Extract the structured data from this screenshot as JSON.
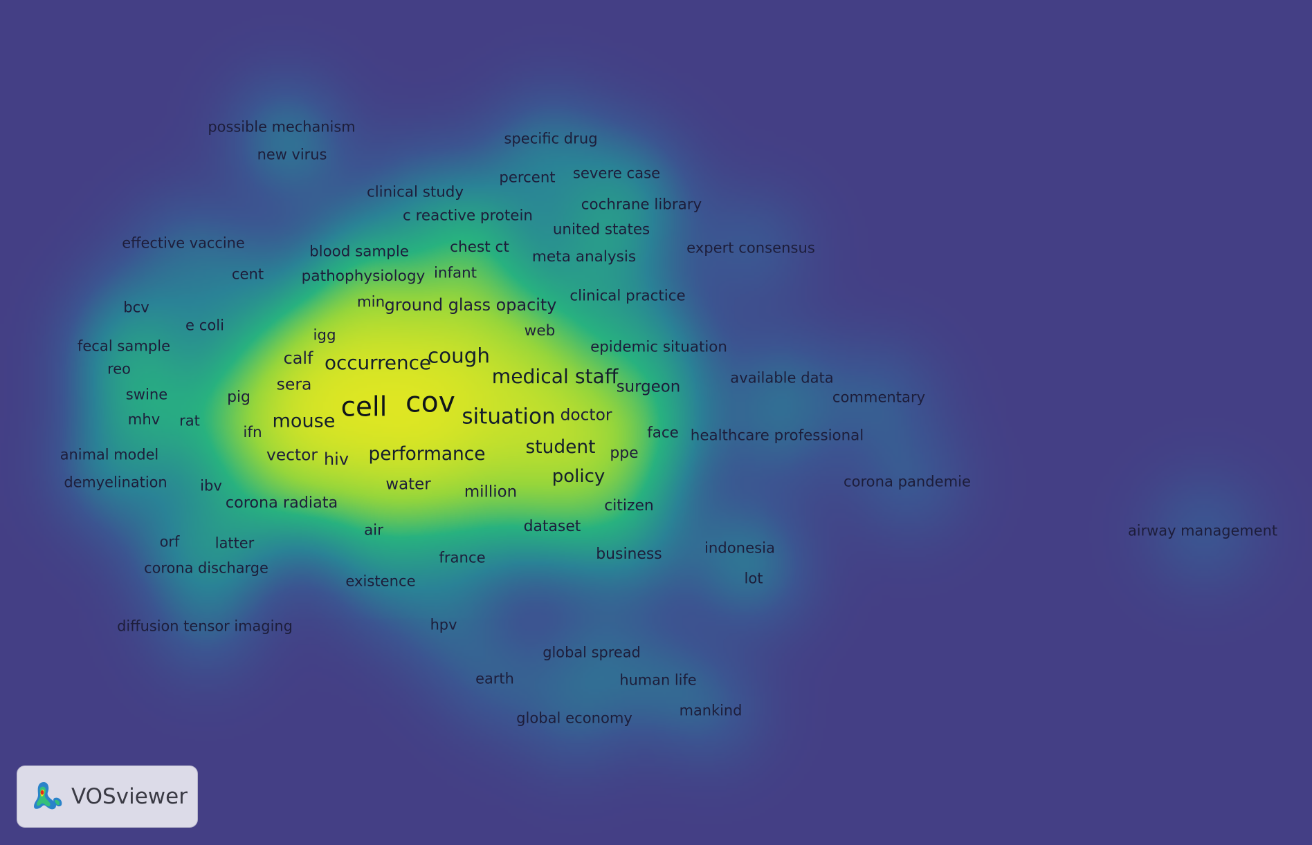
{
  "app": {
    "name": "VOSviewer"
  },
  "colors": {
    "background": "#443f85",
    "low": "#3a7aa0",
    "mid": "#2bb58a",
    "high": "#f5ea1a",
    "label": "#1d1d3a"
  },
  "terms": [
    {
      "label": "cov",
      "weight": 1.0
    },
    {
      "label": "cell",
      "weight": 0.92
    },
    {
      "label": "situation",
      "weight": 0.62
    },
    {
      "label": "cough",
      "weight": 0.55
    },
    {
      "label": "medical staff",
      "weight": 0.5
    },
    {
      "label": "occurrence",
      "weight": 0.48
    },
    {
      "label": "mouse",
      "weight": 0.45
    },
    {
      "label": "performance",
      "weight": 0.42
    },
    {
      "label": "student",
      "weight": 0.42
    },
    {
      "label": "policy",
      "weight": 0.4
    },
    {
      "label": "ground glass opacity",
      "weight": 0.3
    },
    {
      "label": "calf",
      "weight": 0.3
    },
    {
      "label": "sera",
      "weight": 0.28
    },
    {
      "label": "hiv",
      "weight": 0.3
    },
    {
      "label": "vector",
      "weight": 0.27
    },
    {
      "label": "doctor",
      "weight": 0.27
    },
    {
      "label": "surgeon",
      "weight": 0.25
    },
    {
      "label": "million",
      "weight": 0.25
    },
    {
      "label": "water",
      "weight": 0.25
    },
    {
      "label": "pig",
      "weight": 0.2
    },
    {
      "label": "ifn",
      "weight": 0.18
    },
    {
      "label": "igg",
      "weight": 0.17
    },
    {
      "label": "min",
      "weight": 0.17
    },
    {
      "label": "web",
      "weight": 0.18
    },
    {
      "label": "ppe",
      "weight": 0.2
    },
    {
      "label": "face",
      "weight": 0.17
    },
    {
      "label": "corona radiata",
      "weight": 0.22
    },
    {
      "label": "citizen",
      "weight": 0.2
    },
    {
      "label": "dataset",
      "weight": 0.2
    },
    {
      "label": "air",
      "weight": 0.17
    },
    {
      "label": "france",
      "weight": 0.16
    },
    {
      "label": "existence",
      "weight": 0.15
    },
    {
      "label": "business",
      "weight": 0.2
    },
    {
      "label": "infant",
      "weight": 0.17
    },
    {
      "label": "chest ct",
      "weight": 0.18
    },
    {
      "label": "pathophysiology",
      "weight": 0.18
    },
    {
      "label": "blood sample",
      "weight": 0.17
    },
    {
      "label": "c reactive protein",
      "weight": 0.17
    },
    {
      "label": "clinical study",
      "weight": 0.17
    },
    {
      "label": "percent",
      "weight": 0.16
    },
    {
      "label": "specific drug",
      "weight": 0.15
    },
    {
      "label": "severe case",
      "weight": 0.16
    },
    {
      "label": "cochrane library",
      "weight": 0.17
    },
    {
      "label": "united states",
      "weight": 0.17
    },
    {
      "label": "meta analysis",
      "weight": 0.18
    },
    {
      "label": "expert consensus",
      "weight": 0.15
    },
    {
      "label": "clinical practice",
      "weight": 0.17
    },
    {
      "label": "epidemic situation",
      "weight": 0.17
    },
    {
      "label": "available data",
      "weight": 0.15
    },
    {
      "label": "commentary",
      "weight": 0.15
    },
    {
      "label": "healthcare professional",
      "weight": 0.17
    },
    {
      "label": "corona pandemie",
      "weight": 0.15
    },
    {
      "label": "airway management",
      "weight": 0.14
    },
    {
      "label": "indonesia",
      "weight": 0.16
    },
    {
      "label": "lot",
      "weight": 0.15
    },
    {
      "label": "hpv",
      "weight": 0.14
    },
    {
      "label": "global spread",
      "weight": 0.14
    },
    {
      "label": "earth",
      "weight": 0.14
    },
    {
      "label": "human life",
      "weight": 0.14
    },
    {
      "label": "global economy",
      "weight": 0.15
    },
    {
      "label": "mankind",
      "weight": 0.14
    },
    {
      "label": "possible mechanism",
      "weight": 0.14
    },
    {
      "label": "new virus",
      "weight": 0.14
    },
    {
      "label": "effective vaccine",
      "weight": 0.14
    },
    {
      "label": "cent",
      "weight": 0.15
    },
    {
      "label": "bcv",
      "weight": 0.15
    },
    {
      "label": "e coli",
      "weight": 0.15
    },
    {
      "label": "fecal sample",
      "weight": 0.15
    },
    {
      "label": "reo",
      "weight": 0.14
    },
    {
      "label": "swine",
      "weight": 0.15
    },
    {
      "label": "mhv",
      "weight": 0.15
    },
    {
      "label": "rat",
      "weight": 0.15
    },
    {
      "label": "animal model",
      "weight": 0.14
    },
    {
      "label": "demyelination",
      "weight": 0.14
    },
    {
      "label": "ibv",
      "weight": 0.15
    },
    {
      "label": "orf",
      "weight": 0.14
    },
    {
      "label": "latter",
      "weight": 0.14
    },
    {
      "label": "corona discharge",
      "weight": 0.14
    },
    {
      "label": "diffusion tensor imaging",
      "weight": 0.14
    }
  ]
}
